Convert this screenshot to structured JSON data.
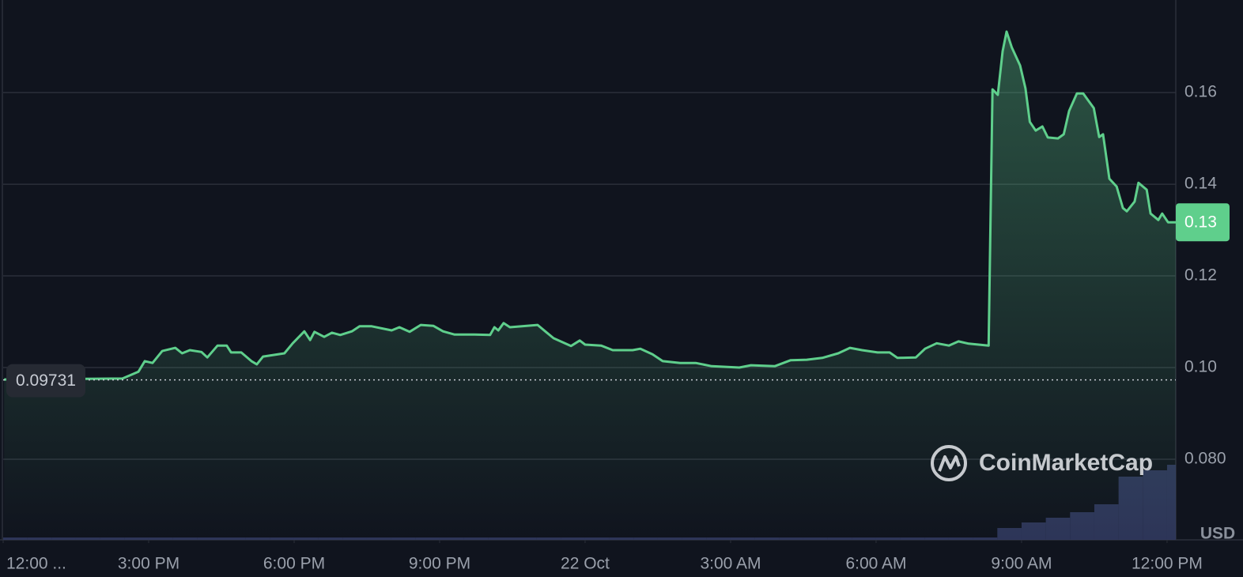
{
  "chart_data": {
    "type": "line",
    "x": [
      0.02,
      2.46,
      2.79,
      2.92,
      3.08,
      3.28,
      3.55,
      3.69,
      3.85,
      4.09,
      4.21,
      4.42,
      4.61,
      4.7,
      4.91,
      5.12,
      5.23,
      5.36,
      5.8,
      5.97,
      6.21,
      6.33,
      6.42,
      6.62,
      6.78,
      6.95,
      7.19,
      7.35,
      7.6,
      8.01,
      8.17,
      8.38,
      8.61,
      8.87,
      9.07,
      9.31,
      9.72,
      10.04,
      10.13,
      10.21,
      10.32,
      10.45,
      11.02,
      11.19,
      11.35,
      11.54,
      11.71,
      11.89,
      12.0,
      12.33,
      12.57,
      12.98,
      13.14,
      13.39,
      13.6,
      13.96,
      14.28,
      14.61,
      15.18,
      15.42,
      15.91,
      16.24,
      16.57,
      16.89,
      17.22,
      17.46,
      17.71,
      18.03,
      18.28,
      18.44,
      18.82,
      19.01,
      19.25,
      19.5,
      19.7,
      19.91,
      20.32,
      20.4,
      20.51,
      20.61,
      20.69,
      20.8,
      20.97,
      21.08,
      21.17,
      21.29,
      21.43,
      21.54,
      21.75,
      21.87,
      21.98,
      22.14,
      22.27,
      22.49,
      22.6,
      22.68,
      22.81,
      22.96,
      23.09,
      23.17,
      23.33,
      23.41,
      23.58,
      23.66,
      23.82,
      23.9,
      24.02,
      24.18
    ],
    "series": [
      {
        "color": "#5fcf8c",
        "values": [
          0.0974,
          0.0976,
          0.0991,
          0.1014,
          0.101,
          0.1036,
          0.1043,
          0.1031,
          0.1038,
          0.1034,
          0.1022,
          0.1048,
          0.1048,
          0.1033,
          0.1033,
          0.1014,
          0.1007,
          0.1024,
          0.1031,
          0.1053,
          0.1079,
          0.106,
          0.1078,
          0.1067,
          0.1076,
          0.1071,
          0.1079,
          0.109,
          0.109,
          0.1081,
          0.1088,
          0.1078,
          0.1093,
          0.1091,
          0.1079,
          0.1072,
          0.1072,
          0.1071,
          0.1088,
          0.1081,
          0.1097,
          0.1088,
          0.1093,
          0.1078,
          0.1064,
          0.1055,
          0.1047,
          0.1059,
          0.105,
          0.1048,
          0.1038,
          0.1038,
          0.1041,
          0.1029,
          0.1014,
          0.101,
          0.101,
          0.1003,
          0.1,
          0.1005,
          0.1003,
          0.1016,
          0.1017,
          0.1021,
          0.1031,
          0.1043,
          0.1038,
          0.1033,
          0.1033,
          0.1021,
          0.1022,
          0.1041,
          0.1053,
          0.1048,
          0.1057,
          0.1052,
          0.1048,
          0.1607,
          0.1595,
          0.169,
          0.1733,
          0.1698,
          0.1659,
          0.1609,
          0.1536,
          0.1517,
          0.1526,
          0.1502,
          0.15,
          0.1509,
          0.156,
          0.1598,
          0.1598,
          0.1566,
          0.1503,
          0.1509,
          0.1412,
          0.1395,
          0.1348,
          0.1341,
          0.1362,
          0.1403,
          0.1388,
          0.1336,
          0.1322,
          0.1336,
          0.1317,
          0.1317
        ]
      }
    ],
    "xlim": [
      0,
      24.18
    ],
    "xticks": [
      {
        "value": 0,
        "label": "12:00 ..."
      },
      {
        "value": 3,
        "label": "3:00 PM"
      },
      {
        "value": 6,
        "label": "6:00 PM"
      },
      {
        "value": 9,
        "label": "9:00 PM"
      },
      {
        "value": 12,
        "label": "22 Oct"
      },
      {
        "value": 15,
        "label": "3:00 AM"
      },
      {
        "value": 18,
        "label": "6:00 AM"
      },
      {
        "value": 21,
        "label": "9:00 AM"
      },
      {
        "value": 24,
        "label": "12:00 PM"
      }
    ],
    "ylim": [
      0.0624,
      0.1802
    ],
    "yticks": [
      {
        "value": 0.08,
        "label": "0.080"
      },
      {
        "value": 0.1,
        "label": "0.10"
      },
      0.12,
      0.14,
      0.16
    ],
    "grid": true,
    "reference_price": 0.09731,
    "last_price": {
      "value": 0.1317,
      "label": "0.13"
    },
    "currency": "USD",
    "watermark": "CoinMarketCap",
    "volume": {
      "color": "#323b63",
      "x": [
        0,
        0.5,
        1,
        1.5,
        2,
        2.5,
        3,
        3.5,
        4,
        4.5,
        5,
        5.5,
        6,
        6.5,
        7,
        7.5,
        8,
        8.5,
        9,
        9.5,
        10,
        10.5,
        11,
        11.5,
        12,
        12.5,
        13,
        13.5,
        14,
        14.5,
        15,
        15.5,
        16,
        16.5,
        17,
        17.5,
        18,
        18.5,
        19,
        19.5,
        20,
        20.5,
        21,
        21.5,
        22,
        22.5,
        23,
        23.5,
        24
      ],
      "values": [
        3,
        3,
        3,
        3,
        3,
        3,
        3,
        3,
        3,
        3,
        3,
        3,
        3,
        3,
        3,
        3,
        3,
        3,
        3,
        3,
        3,
        3,
        3,
        3,
        3,
        3,
        3,
        3,
        3,
        3,
        3,
        3,
        3,
        3,
        3,
        3,
        3,
        3,
        3,
        3,
        3,
        15,
        22,
        28,
        35,
        45,
        80,
        88,
        95
      ]
    }
  }
}
